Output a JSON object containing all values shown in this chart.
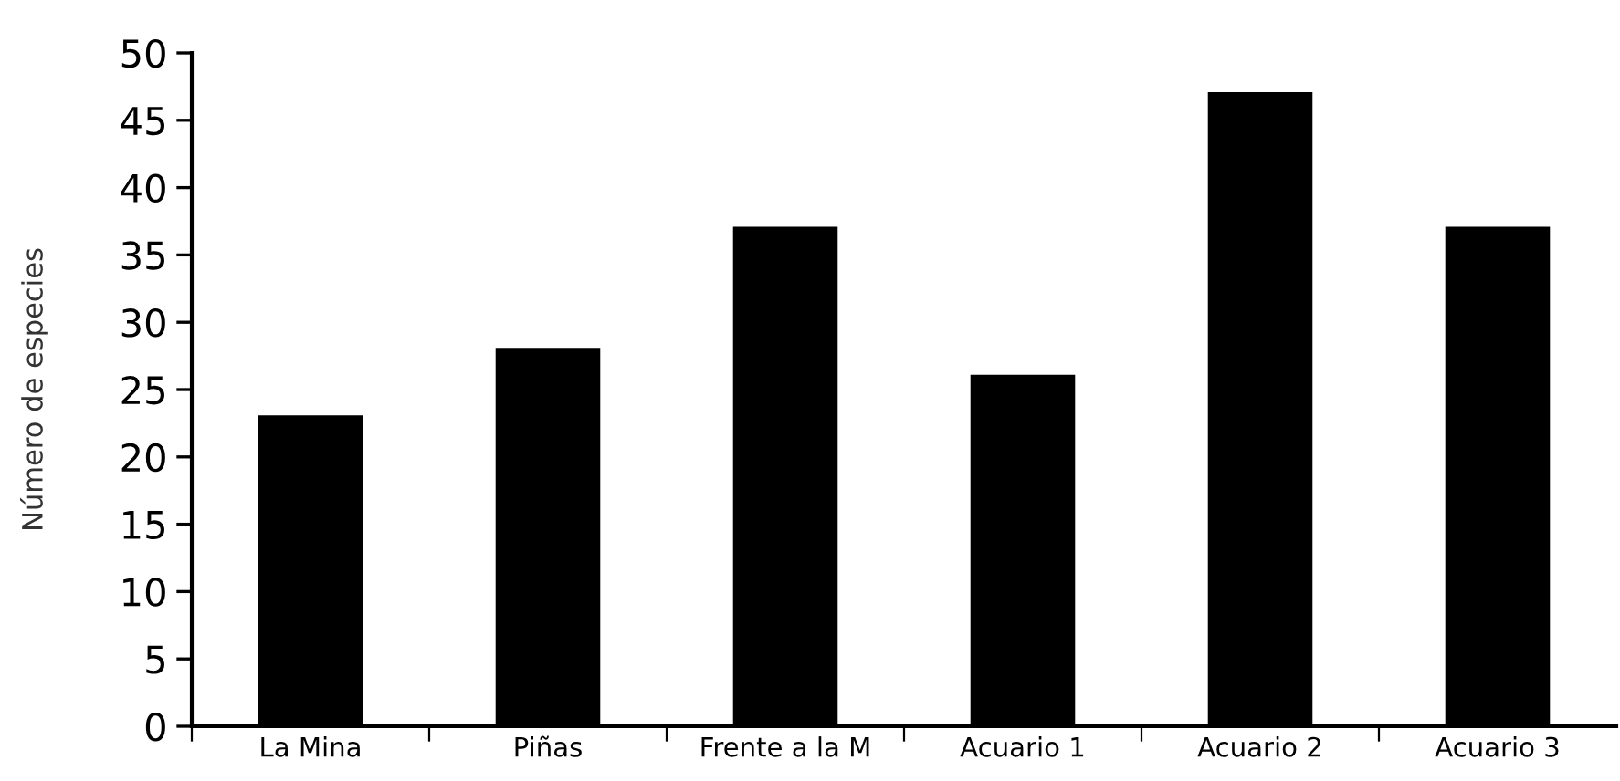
{
  "chart_data": {
    "type": "bar",
    "ylabel": "Número de especies",
    "categories": [
      "La Mina",
      "Piñas",
      "Frente a la M",
      "Acuario 1",
      "Acuario 2",
      "Acuario 3"
    ],
    "values": [
      23,
      28,
      37,
      26,
      47,
      37
    ],
    "color": "#000000",
    "ylim": [
      0,
      50
    ],
    "yticks": [
      0,
      5,
      10,
      15,
      20,
      25,
      30,
      35,
      40,
      45,
      50
    ],
    "grid": false,
    "legend": false
  }
}
